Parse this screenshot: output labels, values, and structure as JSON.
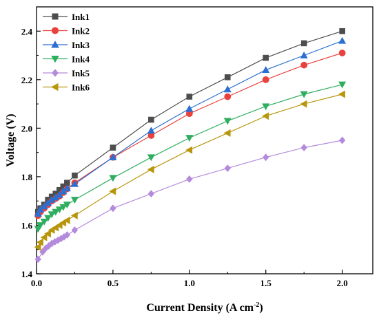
{
  "chart_data": {
    "type": "line",
    "title": "",
    "xlabel": "Current Density (A cm⁻²)",
    "ylabel": "Voltage (V)",
    "xlim": [
      0.0,
      2.2
    ],
    "ylim": [
      1.4,
      2.5
    ],
    "xticks": [
      "0.0",
      "0.5",
      "1.0",
      "1.5",
      "2.0"
    ],
    "xtick_values": [
      0.0,
      0.5,
      1.0,
      1.5,
      2.0
    ],
    "yticks": [
      "1.4",
      "1.6",
      "1.8",
      "2.0",
      "2.2",
      "2.4"
    ],
    "ytick_values": [
      1.4,
      1.6,
      1.8,
      2.0,
      2.2,
      2.4
    ],
    "grid": false,
    "legend_position": "top-left",
    "series": [
      {
        "name": "Ink1",
        "color": "#4d4d4d",
        "marker": "square",
        "points": [
          [
            0.01,
            1.655
          ],
          [
            0.025,
            1.67
          ],
          [
            0.05,
            1.685
          ],
          [
            0.075,
            1.705
          ],
          [
            0.1,
            1.718
          ],
          [
            0.125,
            1.73
          ],
          [
            0.15,
            1.745
          ],
          [
            0.175,
            1.76
          ],
          [
            0.2,
            1.775
          ],
          [
            0.25,
            1.805
          ],
          [
            0.5,
            1.92
          ],
          [
            0.75,
            2.035
          ],
          [
            1.0,
            2.13
          ],
          [
            1.25,
            2.21
          ],
          [
            1.5,
            2.29
          ],
          [
            1.75,
            2.35
          ],
          [
            2.0,
            2.4
          ]
        ]
      },
      {
        "name": "Ink2",
        "color": "#e8423f",
        "marker": "circle",
        "points": [
          [
            0.01,
            1.64
          ],
          [
            0.025,
            1.655
          ],
          [
            0.05,
            1.67
          ],
          [
            0.075,
            1.685
          ],
          [
            0.1,
            1.7
          ],
          [
            0.125,
            1.71
          ],
          [
            0.15,
            1.72
          ],
          [
            0.175,
            1.735
          ],
          [
            0.2,
            1.75
          ],
          [
            0.25,
            1.775
          ],
          [
            0.5,
            1.88
          ],
          [
            0.75,
            1.97
          ],
          [
            1.0,
            2.06
          ],
          [
            1.25,
            2.13
          ],
          [
            1.5,
            2.2
          ],
          [
            1.75,
            2.26
          ],
          [
            2.0,
            2.31
          ]
        ]
      },
      {
        "name": "Ink3",
        "color": "#2a6fd1",
        "marker": "triangle-up",
        "points": [
          [
            0.01,
            1.648
          ],
          [
            0.025,
            1.665
          ],
          [
            0.05,
            1.678
          ],
          [
            0.075,
            1.692
          ],
          [
            0.1,
            1.705
          ],
          [
            0.125,
            1.715
          ],
          [
            0.15,
            1.725
          ],
          [
            0.175,
            1.74
          ],
          [
            0.2,
            1.752
          ],
          [
            0.25,
            1.77
          ],
          [
            0.5,
            1.88
          ],
          [
            0.75,
            1.99
          ],
          [
            1.0,
            2.08
          ],
          [
            1.25,
            2.16
          ],
          [
            1.5,
            2.24
          ],
          [
            1.75,
            2.3
          ],
          [
            2.0,
            2.36
          ]
        ]
      },
      {
        "name": "Ink4",
        "color": "#2fae5f",
        "marker": "triangle-down",
        "points": [
          [
            0.01,
            1.585
          ],
          [
            0.025,
            1.6
          ],
          [
            0.05,
            1.615
          ],
          [
            0.075,
            1.63
          ],
          [
            0.1,
            1.645
          ],
          [
            0.125,
            1.655
          ],
          [
            0.15,
            1.665
          ],
          [
            0.175,
            1.675
          ],
          [
            0.2,
            1.685
          ],
          [
            0.25,
            1.705
          ],
          [
            0.5,
            1.795
          ],
          [
            0.75,
            1.88
          ],
          [
            1.0,
            1.96
          ],
          [
            1.25,
            2.03
          ],
          [
            1.5,
            2.09
          ],
          [
            1.75,
            2.14
          ],
          [
            2.0,
            2.18
          ]
        ]
      },
      {
        "name": "Ink5",
        "color": "#b48bdc",
        "marker": "diamond",
        "points": [
          [
            0.01,
            1.46
          ],
          [
            0.04,
            1.49
          ],
          [
            0.06,
            1.505
          ],
          [
            0.08,
            1.515
          ],
          [
            0.1,
            1.525
          ],
          [
            0.12,
            1.532
          ],
          [
            0.14,
            1.538
          ],
          [
            0.16,
            1.545
          ],
          [
            0.18,
            1.552
          ],
          [
            0.2,
            1.56
          ],
          [
            0.25,
            1.58
          ],
          [
            0.5,
            1.67
          ],
          [
            0.75,
            1.73
          ],
          [
            1.0,
            1.79
          ],
          [
            1.25,
            1.835
          ],
          [
            1.5,
            1.88
          ],
          [
            1.75,
            1.92
          ],
          [
            2.0,
            1.95
          ]
        ]
      },
      {
        "name": "Ink6",
        "color": "#b8960c",
        "marker": "triangle-left",
        "points": [
          [
            0.01,
            1.51
          ],
          [
            0.025,
            1.53
          ],
          [
            0.05,
            1.55
          ],
          [
            0.075,
            1.565
          ],
          [
            0.1,
            1.58
          ],
          [
            0.125,
            1.59
          ],
          [
            0.15,
            1.6
          ],
          [
            0.175,
            1.61
          ],
          [
            0.2,
            1.62
          ],
          [
            0.25,
            1.64
          ],
          [
            0.5,
            1.74
          ],
          [
            0.75,
            1.83
          ],
          [
            1.0,
            1.91
          ],
          [
            1.25,
            1.98
          ],
          [
            1.5,
            2.05
          ],
          [
            1.75,
            2.1
          ],
          [
            2.0,
            2.14
          ]
        ]
      }
    ]
  }
}
